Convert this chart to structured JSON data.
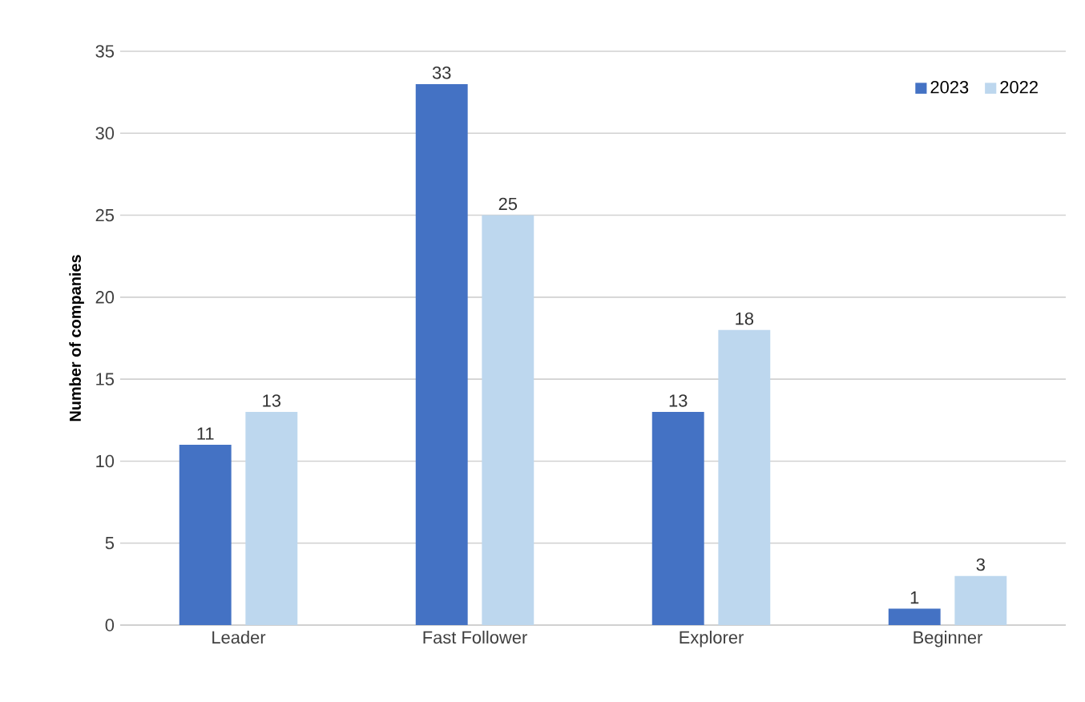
{
  "chart_data": {
    "type": "bar",
    "ylabel": "Number of companies",
    "categories": [
      "Leader",
      "Fast Follower",
      "Explorer",
      "Beginner"
    ],
    "series": [
      {
        "name": "2023",
        "color": "#4472c4",
        "values": [
          11,
          33,
          13,
          1
        ]
      },
      {
        "name": "2022",
        "color": "#bdd7ee",
        "values": [
          13,
          25,
          18,
          3
        ]
      }
    ],
    "ylim": [
      0,
      35
    ],
    "yticks": [
      0,
      5,
      10,
      15,
      20,
      25,
      30,
      35
    ],
    "grid": "y",
    "legend": "top right",
    "data_labels": true
  }
}
